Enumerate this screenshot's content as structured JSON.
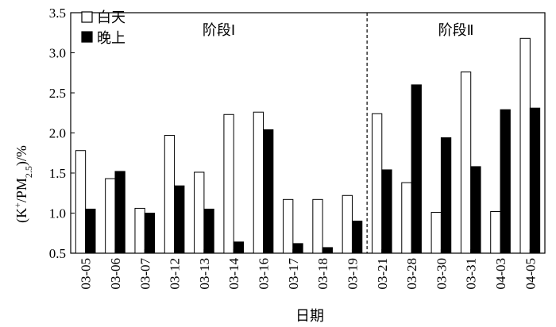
{
  "chart_data": {
    "type": "bar",
    "categories": [
      "03-05",
      "03-06",
      "03-07",
      "03-12",
      "03-13",
      "03-14",
      "03-16",
      "03-17",
      "03-18",
      "03-19",
      "03-21",
      "03-28",
      "03-30",
      "03-31",
      "04-03",
      "04-05"
    ],
    "series": [
      {
        "name": "白天",
        "color": "#ffffff",
        "values": [
          1.78,
          1.43,
          1.06,
          1.97,
          1.51,
          2.23,
          2.26,
          1.17,
          1.17,
          1.22,
          2.24,
          1.38,
          1.01,
          2.76,
          1.02,
          3.18
        ]
      },
      {
        "name": "晚上",
        "color": "#000000",
        "values": [
          1.05,
          1.52,
          1.0,
          1.34,
          1.05,
          0.64,
          2.04,
          0.62,
          0.57,
          0.9,
          1.54,
          2.6,
          1.94,
          1.58,
          2.29,
          2.31
        ]
      }
    ],
    "xlabel": "日期",
    "ylabel_main": "(K",
    "ylabel_sup": "+",
    "ylabel_mid": "/PM",
    "ylabel_sub": "2.5",
    "ylabel_tail": ")/%",
    "ylim": [
      0.5,
      3.5
    ],
    "yticks": [
      "0.5",
      "1.0",
      "1.5",
      "2.0",
      "2.5",
      "3.0",
      "3.5"
    ],
    "yticks_values": [
      0.5,
      1.0,
      1.5,
      2.0,
      2.5,
      3.0,
      3.5
    ],
    "phases": [
      {
        "label": "阶段Ⅰ"
      },
      {
        "label": "阶段Ⅱ"
      }
    ],
    "divider_after_index": 9,
    "legend_position": "top-left"
  }
}
